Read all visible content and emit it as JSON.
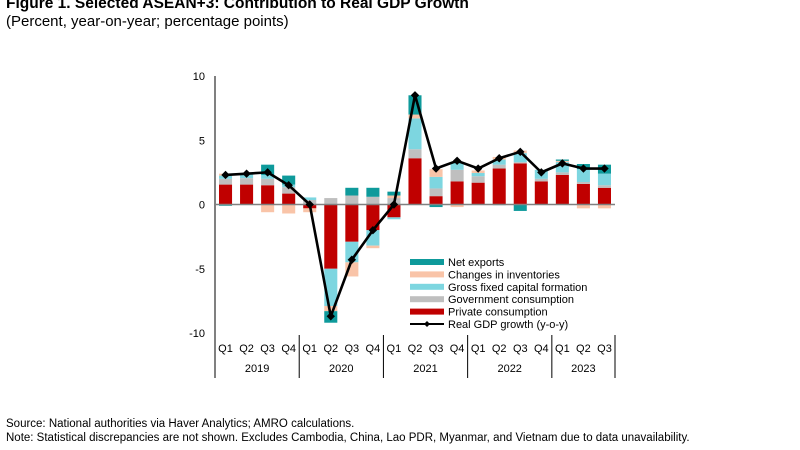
{
  "figure": {
    "title": "Figure 1. Selected ASEAN+3: Contribution to Real GDP Growth",
    "subtitle": "(Percent, year-on-year; percentage points)",
    "source": "Source: National authorities via Haver Analytics; AMRO calculations.",
    "note": "Note: Statistical discrepancies are not shown. Excludes Cambodia, China, Lao PDR, Myanmar, and Vietnam due to data unavailability."
  },
  "chart_data": {
    "type": "bar",
    "stacked": true,
    "title": "Figure 1. Selected ASEAN+3: Contribution to Real GDP Growth",
    "subtitle": "(Percent, year-on-year; percentage points)",
    "xlabel": "",
    "ylabel": "",
    "ylim": [
      -10,
      10
    ],
    "yticks": [
      10,
      5,
      0,
      -5,
      -10
    ],
    "grid": false,
    "legend_position": "bottom-right-inside",
    "categories": [
      "Q1",
      "Q2",
      "Q3",
      "Q4",
      "Q1",
      "Q2",
      "Q3",
      "Q4",
      "Q1",
      "Q2",
      "Q3",
      "Q4",
      "Q1",
      "Q2",
      "Q3",
      "Q4",
      "Q1",
      "Q2",
      "Q3"
    ],
    "year_groups": [
      {
        "label": "2019",
        "count": 4
      },
      {
        "label": "2020",
        "count": 4
      },
      {
        "label": "2021",
        "count": 4
      },
      {
        "label": "2022",
        "count": 4
      },
      {
        "label": "2023",
        "count": 3
      }
    ],
    "series": [
      {
        "name": "Private consumption",
        "type": "bar",
        "color": "#C00000",
        "values": [
          1.55,
          1.55,
          1.5,
          0.85,
          -0.3,
          -5.0,
          -2.9,
          -2.0,
          -1.0,
          3.6,
          0.65,
          1.8,
          1.7,
          2.8,
          3.2,
          1.8,
          2.3,
          1.6,
          1.3
        ]
      },
      {
        "name": "Government consumption",
        "type": "bar",
        "color": "#BFBFBF",
        "values": [
          0.45,
          0.5,
          0.5,
          0.5,
          0.35,
          0.5,
          0.7,
          0.6,
          0.5,
          0.7,
          0.6,
          0.9,
          0.5,
          0.3,
          0.1,
          0.2,
          0.2,
          0.15,
          0.2
        ]
      },
      {
        "name": "Gross fixed capital formation",
        "type": "bar",
        "color": "#7DD6E0",
        "values": [
          0.25,
          0.3,
          0.3,
          0.2,
          0.2,
          -2.9,
          -1.6,
          -1.2,
          -0.15,
          2.4,
          0.9,
          0.5,
          0.25,
          0.4,
          0.7,
          0.7,
          0.8,
          1.0,
          0.9
        ]
      },
      {
        "name": "Changes in inventories",
        "type": "bar",
        "color": "#F9C4A8",
        "values": [
          0.15,
          0.1,
          -0.6,
          -0.7,
          -0.3,
          -0.4,
          -1.1,
          -0.2,
          0.2,
          0.3,
          0.6,
          -0.2,
          0.2,
          0.2,
          0.2,
          0.0,
          0.1,
          -0.3,
          -0.3
        ]
      },
      {
        "name": "Net exports",
        "type": "bar",
        "color": "#0E9A9B",
        "values": [
          -0.1,
          0.0,
          0.8,
          0.7,
          0.0,
          -0.9,
          0.6,
          0.7,
          0.3,
          1.5,
          -0.2,
          0.1,
          0.0,
          -0.05,
          -0.5,
          0.0,
          0.1,
          0.4,
          0.7
        ]
      },
      {
        "name": "Real GDP growth (y-o-y)",
        "type": "line",
        "color": "#000000",
        "values": [
          2.3,
          2.4,
          2.5,
          1.5,
          0.0,
          -8.7,
          -4.3,
          -2.0,
          0.0,
          8.5,
          2.8,
          3.4,
          2.8,
          3.6,
          4.1,
          2.5,
          3.2,
          2.8,
          2.8
        ]
      }
    ],
    "legend": [
      {
        "label": "Net exports",
        "kind": "box",
        "color": "#0E9A9B"
      },
      {
        "label": "Changes in inventories",
        "kind": "box",
        "color": "#F9C4A8"
      },
      {
        "label": "Gross fixed capital formation",
        "kind": "box",
        "color": "#7DD6E0"
      },
      {
        "label": "Government consumption",
        "kind": "box",
        "color": "#BFBFBF"
      },
      {
        "label": "Private consumption",
        "kind": "box",
        "color": "#C00000"
      },
      {
        "label": "Real GDP growth (y-o-y)",
        "kind": "line",
        "color": "#000000"
      }
    ]
  }
}
